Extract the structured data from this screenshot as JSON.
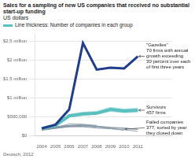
{
  "chart_data": {
    "type": "line",
    "title": "Sales for a sampling of new US companies that received no substantial start-up funding",
    "subtitle": "US dollars",
    "legend_label": "Line thickness: Number of companies in each group",
    "legend": "upper left",
    "source": "Deutsch, 2012",
    "x": [
      2004,
      2005,
      2006,
      2007,
      2008,
      2009,
      2010,
      2011
    ],
    "series": [
      {
        "color": "#8090a0",
        "line_style": "thin",
        "values": [
          200000,
          250000,
          280000,
          260000,
          null,
          null,
          null,
          null
        ]
      },
      {
        "color": "#8090a0",
        "line_style": "thin",
        "values": [
          180000,
          220000,
          320000,
          310000,
          280000,
          null,
          null,
          null
        ]
      },
      {
        "color": "#8090a0",
        "line_style": "thin",
        "values": [
          150000,
          200000,
          280000,
          300000,
          260000,
          220000,
          null,
          null
        ]
      },
      {
        "color": "#8090a0",
        "line_style": "thin",
        "values": [
          160000,
          210000,
          250000,
          240000,
          210000,
          190000,
          150000,
          null
        ]
      },
      {
        "color": "#8090a0",
        "line_style": "thin",
        "values": [
          170000,
          200000,
          240000,
          260000,
          230000,
          200000,
          170000,
          120000
        ]
      },
      {
        "color": "#8090a0",
        "line_style": "thin",
        "values": [
          180000,
          220000,
          260000,
          270000,
          250000,
          220000,
          200000,
          170000
        ]
      },
      {
        "color": "#8090a0",
        "line_style": "thin",
        "values": [
          190000,
          230000,
          270000,
          280000,
          260000,
          230000,
          210000,
          180000
        ]
      },
      {
        "color": "#5abfbf",
        "line_style": "thick",
        "values": [
          200000,
          280000,
          530000,
          580000,
          600000,
          700000,
          660000,
          680000
        ],
        "band_low": [
          180000,
          260000,
          490000,
          530000,
          560000,
          640000,
          600000,
          620000
        ],
        "band_high": [
          220000,
          310000,
          580000,
          640000,
          660000,
          770000,
          720000,
          750000
        ]
      },
      {
        "color": "#1f3d8c",
        "line_style": "thick",
        "values": [
          200000,
          300000,
          700000,
          2450000,
          1750000,
          1800000,
          1780000,
          2100000
        ]
      }
    ],
    "xlim": [
      2003.5,
      2013.5
    ],
    "xticks": [
      2004,
      2005,
      2006,
      2007,
      2008,
      2009,
      2010,
      2011
    ],
    "ylim": [
      0,
      2700000
    ],
    "yticks": [
      {
        "value": 0,
        "label": "$0"
      },
      {
        "value": 500000,
        "label": "$500,000"
      },
      {
        "value": 1000000,
        "label": "$1 million"
      },
      {
        "value": 1500000,
        "label": "$1.5 million"
      },
      {
        "value": 2000000,
        "label": "$2 million"
      },
      {
        "value": 2500000,
        "label": "$2.5 million"
      }
    ],
    "grid": "y",
    "annotations": [
      {
        "text": "\"Gazelles\"\n70 firms with annual\ngrowth exceeding\n30 percent over each\nof first three years",
        "x": 2011,
        "y": 2100000
      },
      {
        "text": "Survivors\n457 firms",
        "x": 2011,
        "y": 680000
      },
      {
        "text": "Failed companies\n377, sorted by year\nthey closed down",
        "x": 2010,
        "y": 180000
      }
    ]
  }
}
